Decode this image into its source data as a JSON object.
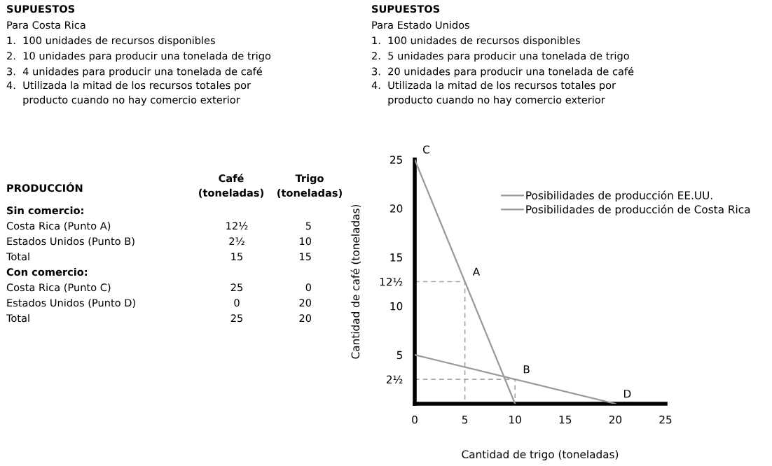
{
  "chart_data": {
    "type": "line",
    "xlabel": "Cantidad de trigo (toneladas)",
    "ylabel": "Cantidad de café (toneladas)",
    "xlim": [
      0,
      25
    ],
    "ylim": [
      0,
      25
    ],
    "xticks": [
      0,
      5,
      10,
      15,
      20,
      25
    ],
    "yticks": [
      {
        "value": 2.5,
        "label": "2½"
      },
      5,
      10,
      {
        "value": 12.5,
        "label": "12½"
      },
      15,
      20,
      25
    ],
    "series": [
      {
        "name": "Posibilidades de producción EE.UU.",
        "color": "#999999",
        "x": [
          0,
          20
        ],
        "values": [
          5,
          0
        ]
      },
      {
        "name": "Posibilidades de producción de Costa Rica",
        "color": "#999999",
        "x": [
          0,
          10
        ],
        "values": [
          25,
          0
        ]
      },
      {
        "color": "#a6a6a6",
        "line_style": "dashed",
        "x": [
          0,
          5,
          5
        ],
        "values": [
          12.5,
          12.5,
          0
        ]
      },
      {
        "color": "#a6a6a6",
        "line_style": "dashed",
        "x": [
          0,
          10,
          10
        ],
        "values": [
          2.5,
          2.5,
          0
        ]
      }
    ],
    "legend": "top right",
    "grid": false,
    "marker": "none",
    "annotations": [
      "SUPUESTOS",
      "Para Costa Rica",
      "1.  100 unidades de recursos disponibles",
      "2.  10 unidades para producir una tonelada de trigo",
      "3.  4 unidades para producir una tonelada de café",
      "4.  Utilizada la mitad de los recursos totales por\n     producto cuando no hay comercio exterior",
      "SUPUESTOS",
      "Para Estado Unidos",
      "1.  100 unidades de recursos disponibles",
      "2.  5 unidades para producir una tonelada de trigo",
      "3.  20 unidades para producir una tonelada de café",
      "4.  Utilizada la mitad de los recursos totales por\n     producto cuando no hay comercio exterior",
      "PRODUCCIÓN",
      "Café\n(toneladas)",
      "Trigo\n(toneladas)",
      "Sin comercio:",
      "Costa Rica (Punto A)",
      "12½",
      "5",
      "Estados Unidos (Punto B)",
      "2½",
      "10",
      "Total",
      "15",
      "15",
      "Con comercio:",
      "Costa Rica (Punto C)",
      "25",
      "0",
      "Estados Unidos (Punto D)",
      "0",
      "20",
      "Total",
      "25",
      "20",
      {
        "text": "A",
        "x": 5,
        "y": 12.5
      },
      {
        "text": "B",
        "x": 10,
        "y": 2.5
      },
      {
        "text": "C",
        "x": 0,
        "y": 25
      },
      {
        "text": "D",
        "x": 20,
        "y": 0
      }
    ]
  }
}
